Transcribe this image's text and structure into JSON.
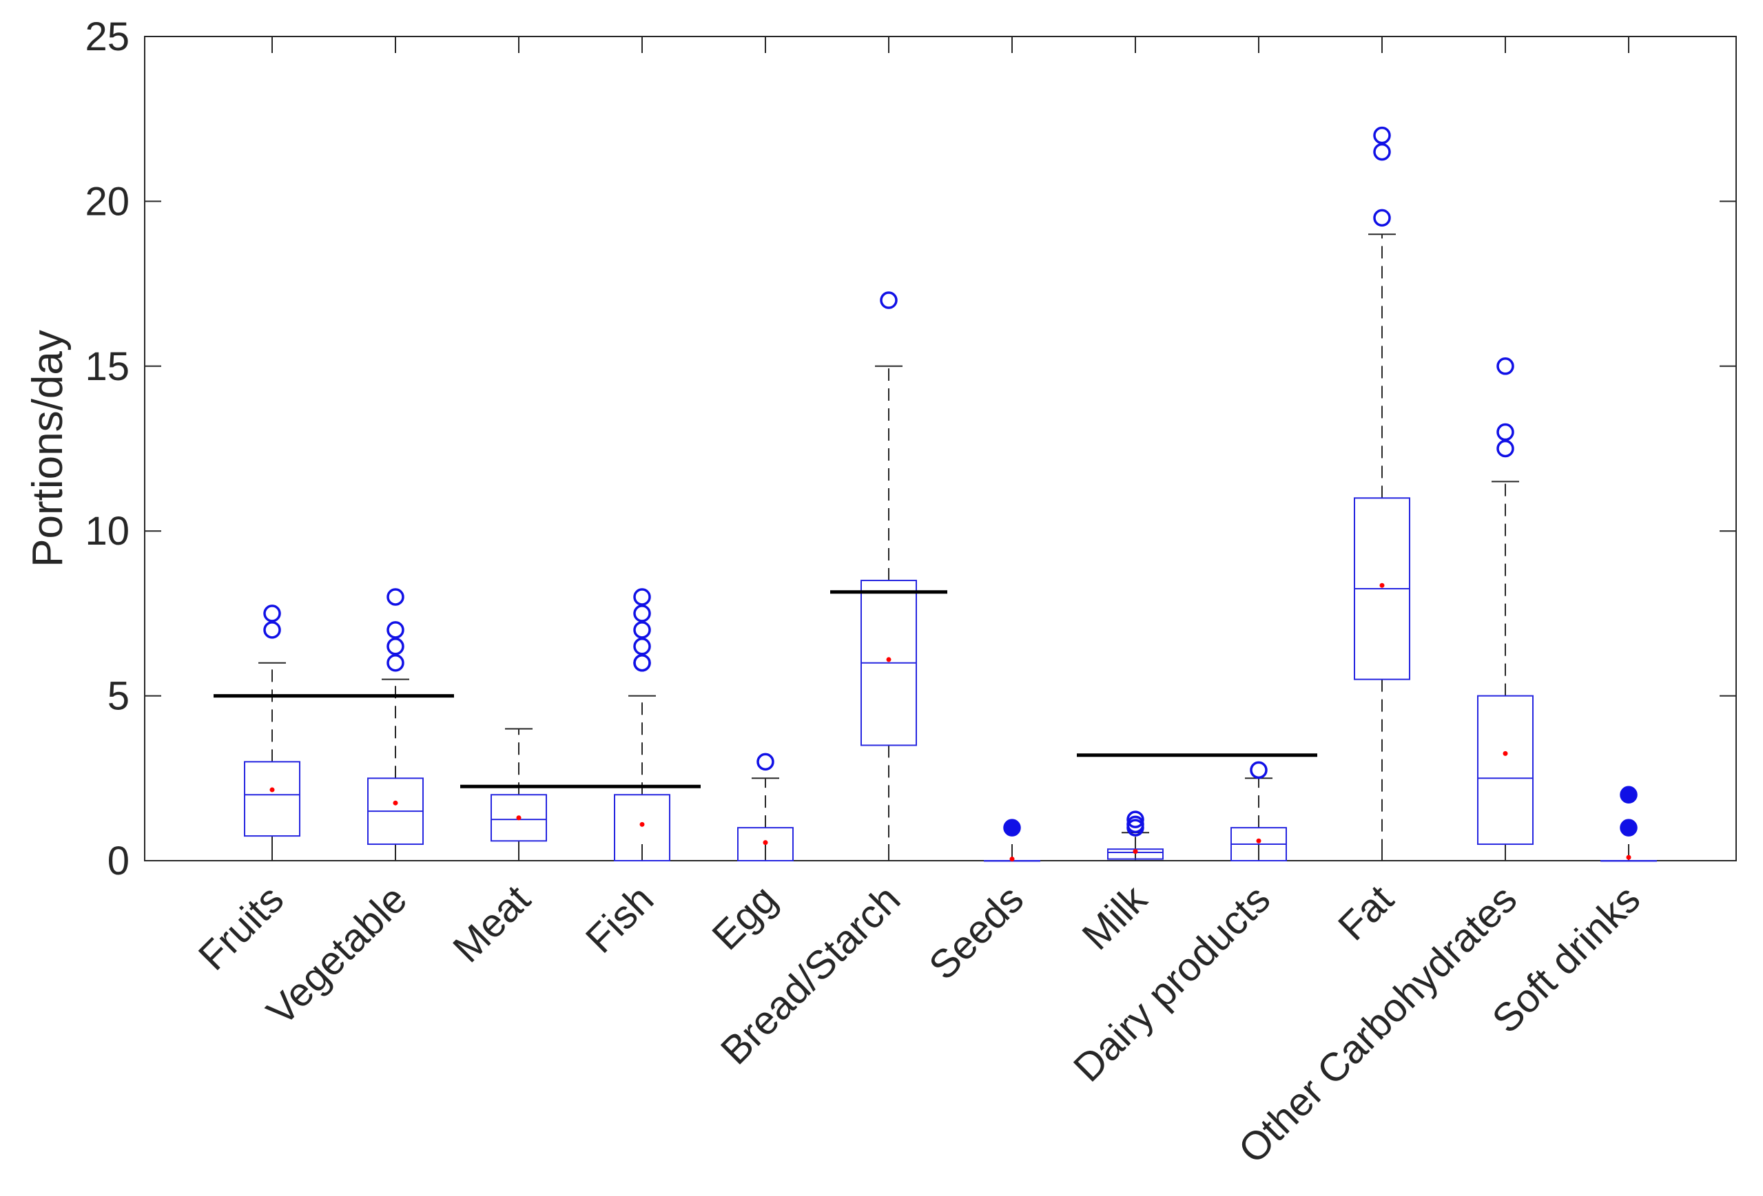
{
  "chart_data": {
    "type": "box",
    "title": "",
    "xlabel": "",
    "ylabel": "Portions/day",
    "ylim": [
      0,
      25
    ],
    "yticks": [
      0,
      5,
      10,
      15,
      20,
      25
    ],
    "grid": false,
    "colors": {
      "box": "#2626e0",
      "outlier": "#1010e6",
      "mean": "#ff0000",
      "reference": "#000000",
      "axis": "#262626"
    },
    "categories": [
      "Fruits",
      "Vegetable",
      "Meat",
      "Fish",
      "Egg",
      "Bread/Starch",
      "Seeds",
      "Milk",
      "Dairy products",
      "Fat",
      "Other Carbohydrates",
      "Soft drinks"
    ],
    "boxes": [
      {
        "name": "Fruits",
        "q1": 0.75,
        "median": 2.0,
        "q3": 3.0,
        "whisker_low": 0,
        "whisker_high": 6.0,
        "mean": 2.15,
        "outliers": [
          7.0,
          7.5
        ],
        "filled_outliers": false
      },
      {
        "name": "Vegetable",
        "q1": 0.5,
        "median": 1.5,
        "q3": 2.5,
        "whisker_low": 0,
        "whisker_high": 5.5,
        "mean": 1.75,
        "outliers": [
          6.0,
          6.5,
          7.0,
          8.0
        ],
        "filled_outliers": false
      },
      {
        "name": "Meat",
        "q1": 0.6,
        "median": 1.25,
        "q3": 2.0,
        "whisker_low": 0,
        "whisker_high": 4.0,
        "mean": 1.3,
        "outliers": [],
        "filled_outliers": false
      },
      {
        "name": "Fish",
        "q1": 0,
        "median": 0,
        "q3": 2.0,
        "whisker_low": 0,
        "whisker_high": 5.0,
        "mean": 1.1,
        "outliers": [
          6.0,
          6.0,
          6.5,
          7.0,
          7.5,
          8.0
        ],
        "filled_outliers": false
      },
      {
        "name": "Egg",
        "q1": 0,
        "median": 0,
        "q3": 1.0,
        "whisker_low": 0,
        "whisker_high": 2.5,
        "mean": 0.55,
        "outliers": [
          3.0
        ],
        "filled_outliers": false
      },
      {
        "name": "Bread/Starch",
        "q1": 3.5,
        "median": 6.0,
        "q3": 8.5,
        "whisker_low": 0,
        "whisker_high": 15.0,
        "mean": 6.1,
        "outliers": [
          17.0
        ],
        "filled_outliers": false
      },
      {
        "name": "Seeds",
        "q1": 0,
        "median": 0,
        "q3": 0,
        "whisker_low": 0,
        "whisker_high": 0,
        "mean": 0.05,
        "outliers": [
          1.0
        ],
        "filled_outliers": true
      },
      {
        "name": "Milk",
        "q1": 0.05,
        "median": 0.25,
        "q3": 0.35,
        "whisker_low": 0,
        "whisker_high": 0.85,
        "mean": 0.28,
        "outliers": [
          1.0,
          1.1,
          1.25
        ],
        "filled_outliers": false
      },
      {
        "name": "Dairy products",
        "q1": 0,
        "median": 0.5,
        "q3": 1.0,
        "whisker_low": 0,
        "whisker_high": 2.5,
        "mean": 0.6,
        "outliers": [
          2.75
        ],
        "filled_outliers": false
      },
      {
        "name": "Fat",
        "q1": 5.5,
        "median": 8.25,
        "q3": 11.0,
        "whisker_low": 0,
        "whisker_high": 19.0,
        "mean": 8.35,
        "outliers": [
          19.5,
          21.5,
          22.0
        ],
        "filled_outliers": false
      },
      {
        "name": "Other Carbohydrates",
        "q1": 0.5,
        "median": 2.5,
        "q3": 5.0,
        "whisker_low": 0,
        "whisker_high": 11.5,
        "mean": 3.25,
        "outliers": [
          12.5,
          13.0,
          15.0
        ],
        "filled_outliers": false
      },
      {
        "name": "Soft drinks",
        "q1": 0,
        "median": 0,
        "q3": 0,
        "whisker_low": 0,
        "whisker_high": 0,
        "mean": 0.1,
        "outliers": [
          1.0,
          2.0
        ],
        "filled_outliers": true
      }
    ],
    "reference_lines": [
      {
        "value": 5.0,
        "from_category": "Fruits",
        "to_category": "Vegetable"
      },
      {
        "value": 2.25,
        "from_category": "Meat",
        "to_category": "Fish"
      },
      {
        "value": 8.15,
        "from_category": "Bread/Starch",
        "to_category": "Bread/Starch"
      },
      {
        "value": 3.2,
        "from_category": "Milk",
        "to_category": "Dairy products"
      }
    ]
  }
}
